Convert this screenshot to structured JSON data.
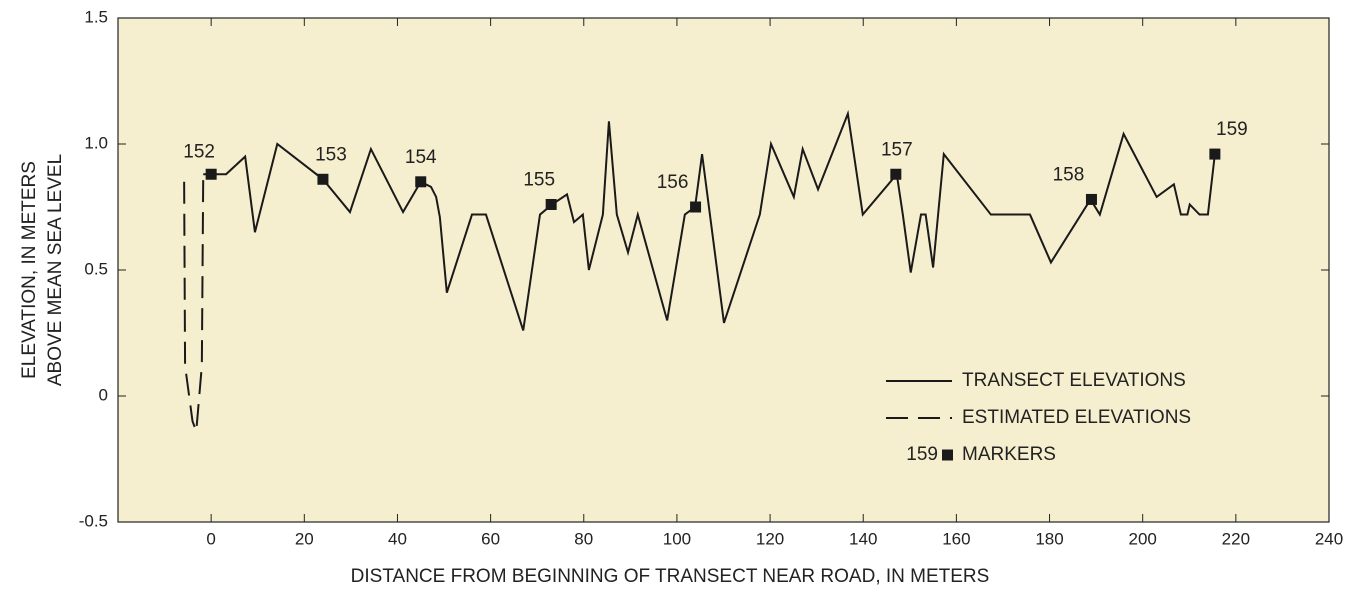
{
  "chart_data": {
    "type": "line",
    "x_label": "DISTANCE FROM BEGINNING OF TRANSECT NEAR ROAD, IN METERS",
    "y_label": [
      "ELEVATION, IN METERS",
      "ABOVE MEAN SEA LEVEL"
    ],
    "xlim": [
      -20,
      240
    ],
    "ylim": [
      -0.5,
      1.5
    ],
    "xticks": [
      0,
      20,
      40,
      60,
      80,
      100,
      120,
      140,
      160,
      180,
      200,
      220,
      240
    ],
    "yticks": [
      -0.5,
      0,
      0.5,
      {
        "value": 1.0,
        "label": "1.0"
      },
      1.5
    ],
    "background": "#f6efcf",
    "series": [
      {
        "name": "TRANSECT ELEVATIONS",
        "color": "#1a1a1a",
        "style": "solid",
        "x": [
          -1.7,
          0,
          3.2,
          7.3,
          9.4,
          14.2,
          24,
          29.8,
          34.3,
          41.2,
          45,
          47.2,
          48.3,
          49.1,
          50.6,
          56,
          59,
          67,
          70.6,
          73.2,
          76.4,
          77.9,
          79.8,
          81.1,
          84.1,
          85.4,
          87.1,
          89.5,
          91.6,
          97.9,
          101.7,
          103.9,
          105.4,
          110.1,
          117.8,
          120.2,
          125.1,
          127,
          130.3,
          136.7,
          139.9,
          147.2,
          148.5,
          150.2,
          152.4,
          153.4,
          155,
          157.3,
          167.4,
          175.8,
          180.3,
          188.8,
          190.8,
          195.9,
          203,
          206.7,
          208.2,
          209.6,
          210.1,
          212.2,
          214,
          215.5
        ],
        "values": [
          0.88,
          0.88,
          0.88,
          0.95,
          0.65,
          1.0,
          0.86,
          0.73,
          0.98,
          0.73,
          0.85,
          0.83,
          0.79,
          0.71,
          0.41,
          0.72,
          0.72,
          0.26,
          0.72,
          0.76,
          0.8,
          0.69,
          0.72,
          0.5,
          0.72,
          1.09,
          0.72,
          0.57,
          0.72,
          0.3,
          0.72,
          0.75,
          0.96,
          0.29,
          0.72,
          1.0,
          0.79,
          0.98,
          0.82,
          1.12,
          0.72,
          0.88,
          0.72,
          0.49,
          0.72,
          0.72,
          0.51,
          0.96,
          0.72,
          0.72,
          0.53,
          0.78,
          0.72,
          1.04,
          0.79,
          0.84,
          0.72,
          0.72,
          0.76,
          0.72,
          0.72,
          0.96
        ]
      },
      {
        "name": "ESTIMATED ELEVATIONS",
        "color": "#1a1a1a",
        "style": "dashed",
        "x": [
          -5.8,
          -5.6,
          -4,
          -3.2,
          -2,
          -1.7
        ],
        "values": [
          0.85,
          0.12,
          -0.1,
          -0.14,
          0.12,
          0.88
        ]
      },
      {
        "name": "MARKERS",
        "color": "#1a1a1a",
        "style": "marker",
        "x": [
          0,
          24,
          45,
          73,
          104,
          147,
          189,
          215.5
        ],
        "values": [
          0.88,
          0.86,
          0.85,
          0.76,
          0.75,
          0.88,
          0.78,
          0.96
        ],
        "labels": [
          "152",
          "153",
          "154",
          "155",
          "156",
          "157",
          "158",
          "159"
        ]
      }
    ],
    "legend_marker_label": "159"
  }
}
